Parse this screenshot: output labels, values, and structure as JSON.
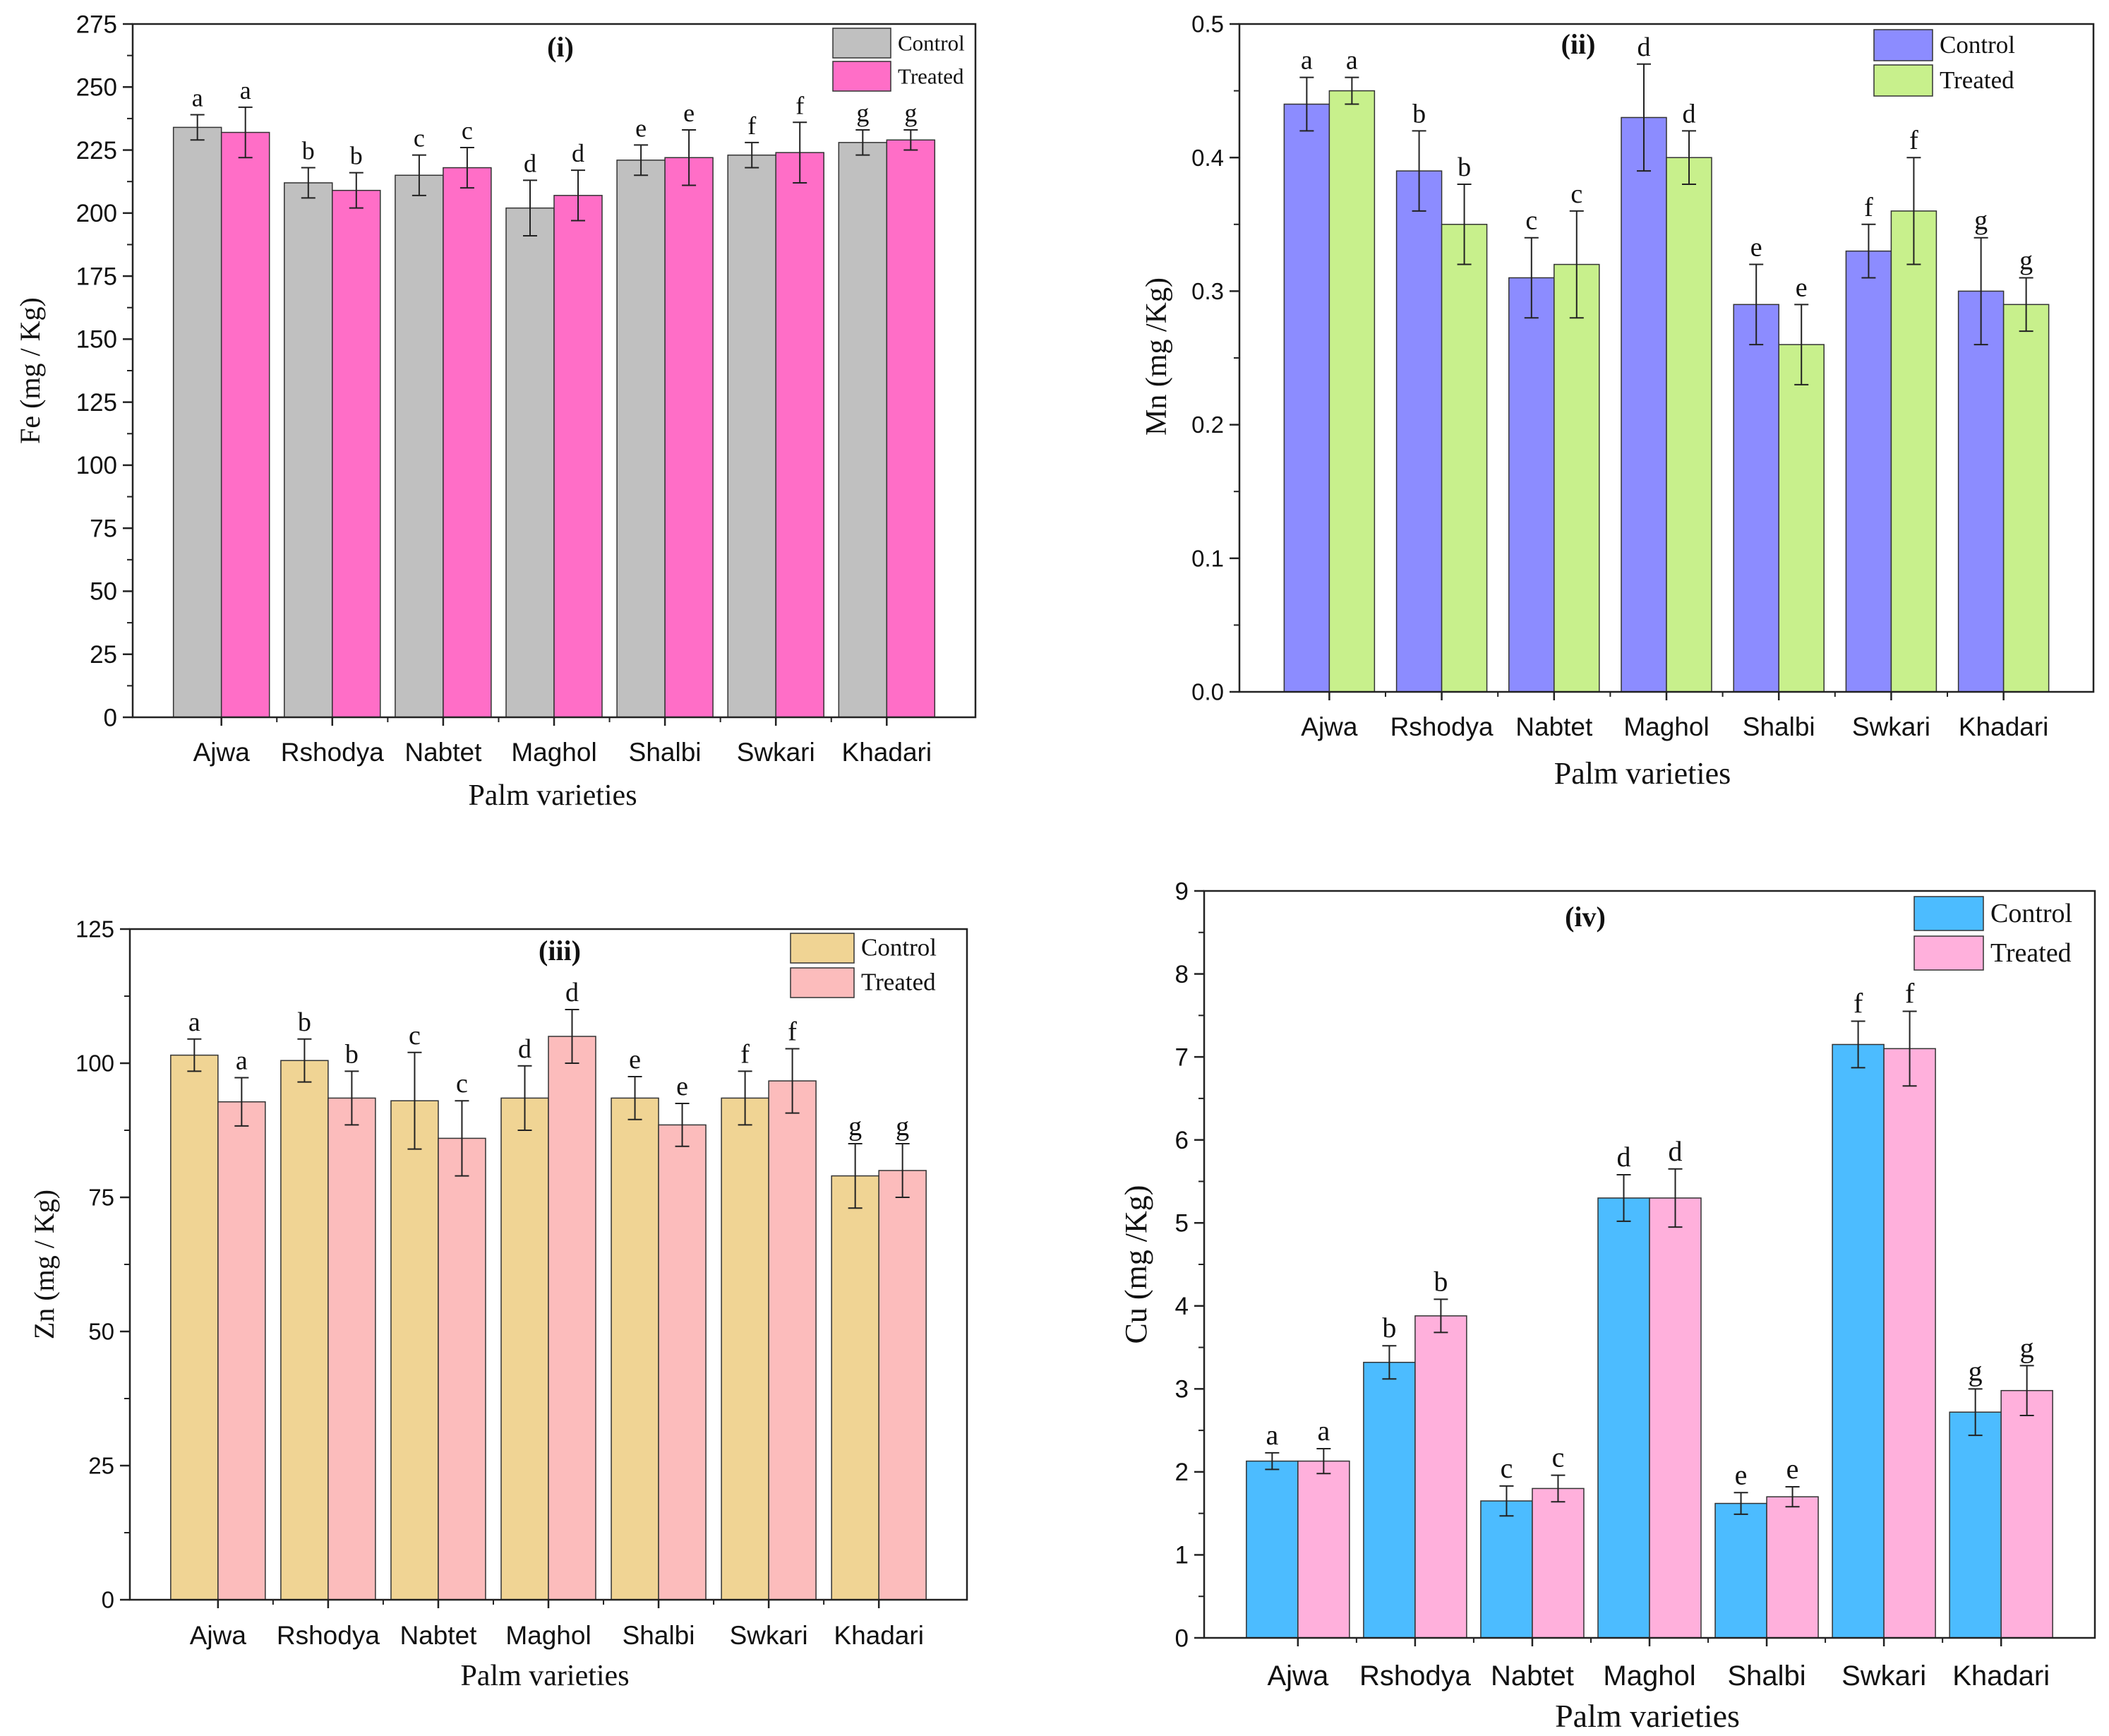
{
  "chart_data": [
    {
      "type": "bar",
      "panel_label": "(i)",
      "title": "",
      "xlabel": "Palm varieties",
      "ylabel": "Fe  (mg / Kg)",
      "categories": [
        "Ajwa",
        "Rshodya",
        "Nabtet",
        "Maghol",
        "Shalbi",
        "Swkari",
        "Khadari"
      ],
      "ylim": [
        0,
        275
      ],
      "yticks": [
        0,
        25,
        50,
        75,
        100,
        125,
        150,
        175,
        200,
        225,
        250,
        275
      ],
      "ytick_labels": [
        "0",
        "25",
        "50",
        "75",
        "100",
        "125",
        "150",
        "175",
        "200",
        "225",
        "250",
        "275"
      ],
      "grid": false,
      "legend_position": "top-right",
      "series": [
        {
          "name": "Control",
          "color": "#c0c0c0",
          "values": [
            234,
            212,
            215,
            202,
            221,
            223,
            228
          ],
          "errors": [
            5,
            6,
            8,
            11,
            6,
            5,
            5
          ],
          "labels": [
            "a",
            "b",
            "c",
            "d",
            "e",
            "f",
            "g"
          ]
        },
        {
          "name": "Treated",
          "color": "#ff6ec7",
          "values": [
            232,
            209,
            218,
            207,
            222,
            224,
            229
          ],
          "errors": [
            10,
            7,
            8,
            10,
            11,
            12,
            4
          ],
          "labels": [
            "a",
            "b",
            "c",
            "d",
            "e",
            "f",
            "g"
          ]
        }
      ]
    },
    {
      "type": "bar",
      "panel_label": "(ii)",
      "title": "",
      "xlabel": "Palm varieties",
      "ylabel": "Mn (mg /Kg)",
      "categories": [
        "Ajwa",
        "Rshodya",
        "Nabtet",
        "Maghol",
        "Shalbi",
        "Swkari",
        "Khadari"
      ],
      "ylim": [
        0,
        0.5
      ],
      "yticks": [
        0,
        0.1,
        0.2,
        0.3,
        0.4,
        0.5
      ],
      "ytick_labels": [
        "0.0",
        "0.1",
        "0.2",
        "0.3",
        "0.4",
        "0.5"
      ],
      "grid": false,
      "legend_position": "top-right",
      "series": [
        {
          "name": "Control",
          "color": "#8c8cff",
          "values": [
            0.44,
            0.39,
            0.31,
            0.43,
            0.29,
            0.33,
            0.3
          ],
          "errors": [
            0.02,
            0.03,
            0.03,
            0.04,
            0.03,
            0.02,
            0.04
          ],
          "labels": [
            "a",
            "b",
            "c",
            "d",
            "e",
            "f",
            "g"
          ]
        },
        {
          "name": "Treated",
          "color": "#c8f08c",
          "values": [
            0.45,
            0.35,
            0.32,
            0.4,
            0.26,
            0.36,
            0.29
          ],
          "errors": [
            0.01,
            0.03,
            0.04,
            0.02,
            0.03,
            0.04,
            0.02
          ],
          "labels": [
            "a",
            "b",
            "c",
            "d",
            "e",
            "f",
            "g"
          ]
        }
      ]
    },
    {
      "type": "bar",
      "panel_label": "(iii)",
      "title": "",
      "xlabel": "Palm varieties",
      "ylabel": "Zn (mg / Kg)",
      "categories": [
        "Ajwa",
        "Rshodya",
        "Nabtet",
        "Maghol",
        "Shalbi",
        "Swkari",
        "Khadari"
      ],
      "ylim": [
        0,
        125
      ],
      "yticks": [
        0,
        25,
        50,
        75,
        100,
        125
      ],
      "ytick_labels": [
        "0",
        "25",
        "50",
        "75",
        "100",
        "125"
      ],
      "grid": false,
      "legend_position": "top-right",
      "series": [
        {
          "name": "Control",
          "color": "#f0d494",
          "values": [
            101.5,
            100.5,
            93,
            93.5,
            93.5,
            93.5,
            79
          ],
          "errors": [
            3,
            4,
            9,
            6,
            4,
            5,
            6
          ],
          "labels": [
            "a",
            "b",
            "c",
            "d",
            "e",
            "f",
            "g"
          ]
        },
        {
          "name": "Treated",
          "color": "#fcbcbc",
          "values": [
            92.8,
            93.5,
            86,
            105,
            88.5,
            96.7,
            80
          ],
          "errors": [
            4.5,
            5,
            7,
            5,
            4,
            6,
            5
          ],
          "labels": [
            "a",
            "b",
            "c",
            "d",
            "e",
            "f",
            "g"
          ]
        }
      ]
    },
    {
      "type": "bar",
      "panel_label": "(iv)",
      "title": "",
      "xlabel": "Palm varieties",
      "ylabel": "Cu (mg /Kg)",
      "categories": [
        "Ajwa",
        "Rshodya",
        "Nabtet",
        "Maghol",
        "Shalbi",
        "Swkari",
        "Khadari"
      ],
      "ylim": [
        0,
        9
      ],
      "yticks": [
        0,
        1,
        2,
        3,
        4,
        5,
        6,
        7,
        8,
        9
      ],
      "ytick_labels": [
        "0",
        "1",
        "2",
        "3",
        "4",
        "5",
        "6",
        "7",
        "8",
        "9"
      ],
      "grid": false,
      "legend_position": "top-right",
      "series": [
        {
          "name": "Control",
          "color": "#4cbcff",
          "values": [
            2.13,
            3.32,
            1.65,
            5.3,
            1.62,
            7.15,
            2.72
          ],
          "errors": [
            0.1,
            0.2,
            0.18,
            0.28,
            0.13,
            0.28,
            0.28
          ],
          "labels": [
            "a",
            "b",
            "c",
            "d",
            "e",
            "f",
            "g"
          ]
        },
        {
          "name": "Treated",
          "color": "#ffb0dc",
          "values": [
            2.13,
            3.88,
            1.8,
            5.3,
            1.7,
            7.1,
            2.98
          ],
          "errors": [
            0.15,
            0.2,
            0.16,
            0.35,
            0.12,
            0.45,
            0.3
          ],
          "labels": [
            "a",
            "b",
            "c",
            "d",
            "e",
            "f",
            "g"
          ]
        }
      ]
    }
  ]
}
